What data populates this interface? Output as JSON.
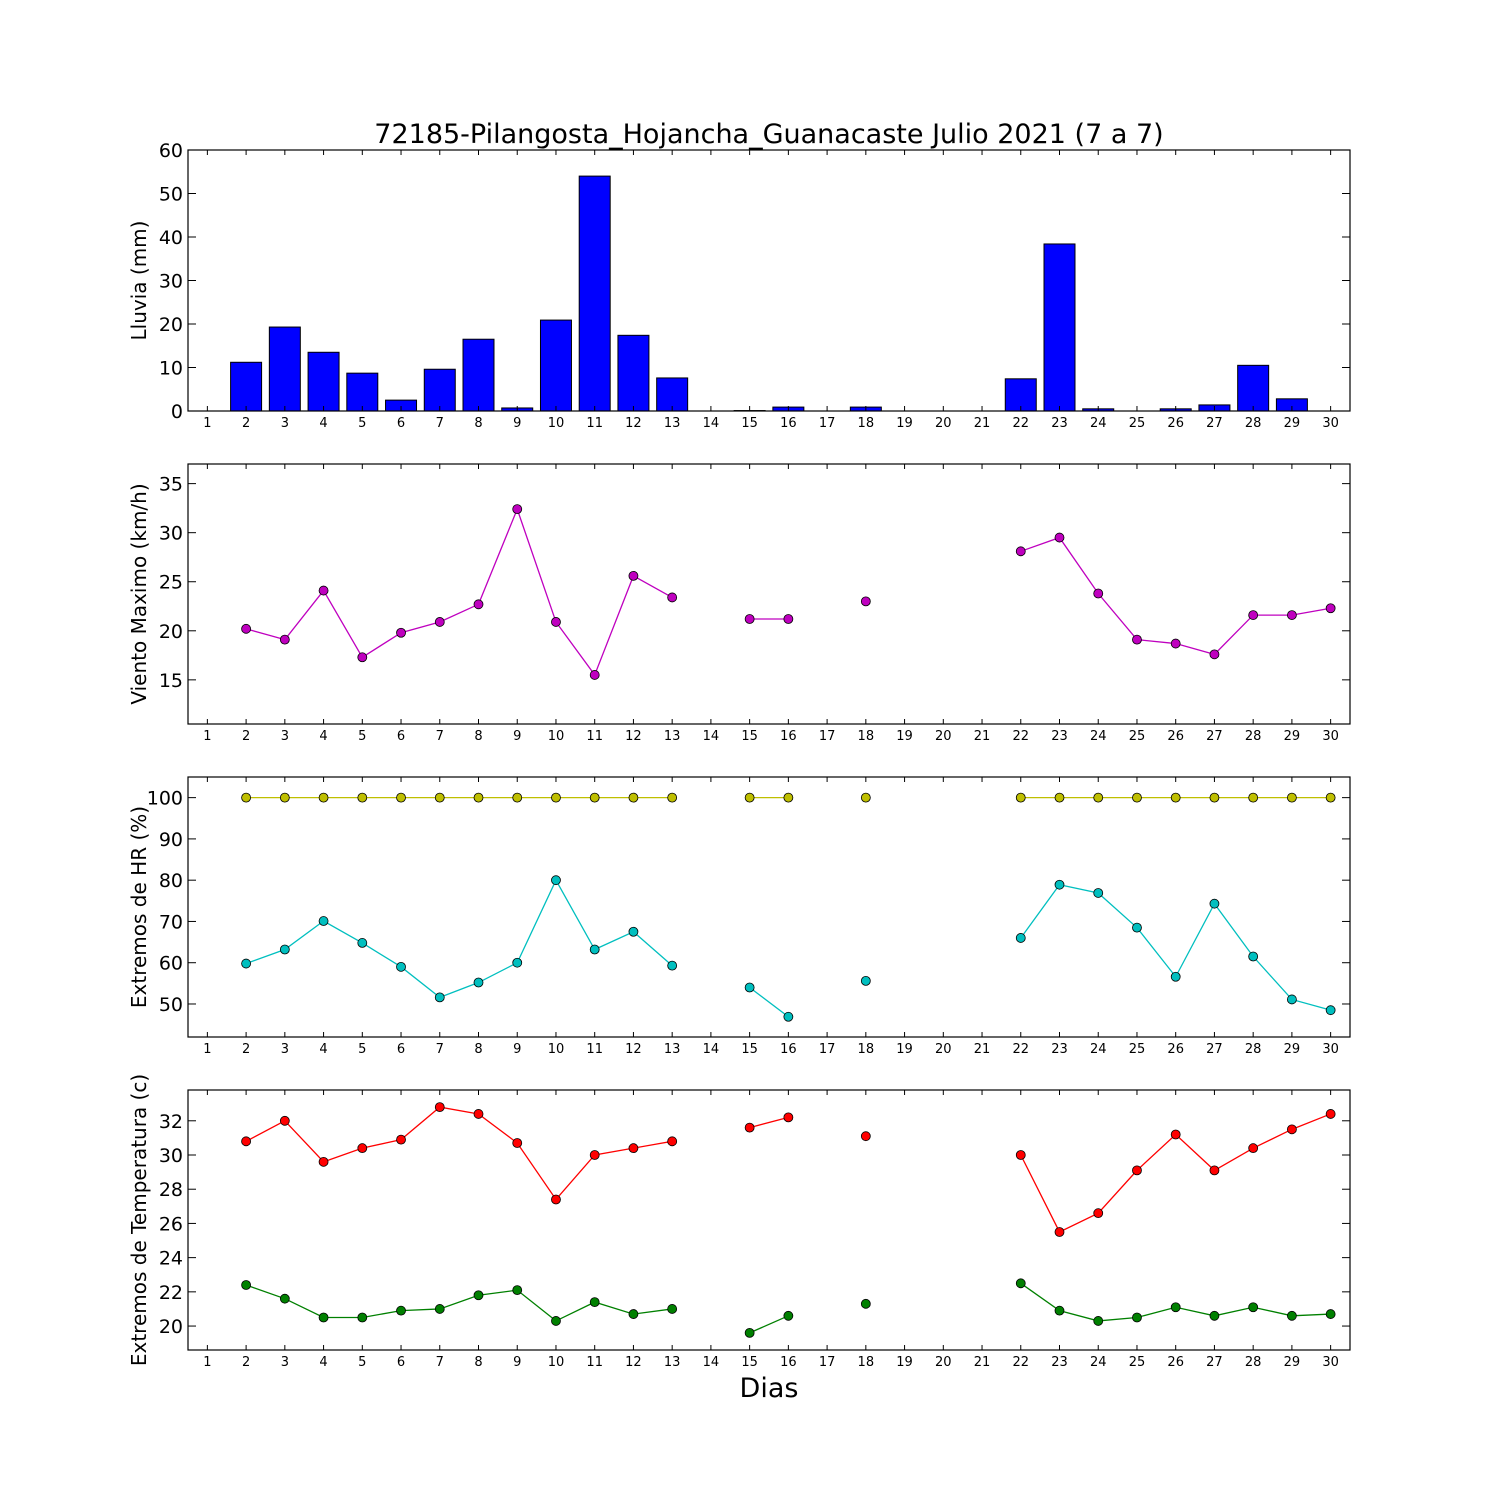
{
  "title": "72185-Pilangosta_Hojancha_Guanacaste Julio 2021  (7 a 7)",
  "chart_data": [
    {
      "type": "bar",
      "ylabel": "Lluvia (mm)",
      "ylim": [
        0,
        60
      ],
      "yticks": [
        0,
        10,
        20,
        30,
        40,
        50,
        60
      ],
      "categories": [
        1,
        2,
        3,
        4,
        5,
        6,
        7,
        8,
        9,
        10,
        11,
        12,
        13,
        14,
        15,
        16,
        17,
        18,
        19,
        20,
        21,
        22,
        23,
        24,
        25,
        26,
        27,
        28,
        29,
        30
      ],
      "series": [
        {
          "color": "#0000ff",
          "values": [
            0,
            11.2,
            19.3,
            13.5,
            8.7,
            2.5,
            9.6,
            16.5,
            0.7,
            20.9,
            54.0,
            17.4,
            7.6,
            0,
            0.1,
            0.9,
            0,
            0.9,
            0,
            0,
            0,
            7.4,
            38.4,
            0.5,
            0,
            0.5,
            1.4,
            10.5,
            2.8,
            0
          ]
        }
      ]
    },
    {
      "type": "line",
      "ylabel": "Viento Maximo (km/h)",
      "ylim": [
        10.5,
        37
      ],
      "yticks": [
        15,
        20,
        25,
        30,
        35
      ],
      "categories": [
        1,
        2,
        3,
        4,
        5,
        6,
        7,
        8,
        9,
        10,
        11,
        12,
        13,
        14,
        15,
        16,
        17,
        18,
        19,
        20,
        21,
        22,
        23,
        24,
        25,
        26,
        27,
        28,
        29,
        30
      ],
      "series": [
        {
          "color": "#bf00bf",
          "values": [
            null,
            20.2,
            19.1,
            24.1,
            17.3,
            19.8,
            20.9,
            22.7,
            32.4,
            20.9,
            15.5,
            25.6,
            23.4,
            null,
            21.2,
            21.2,
            null,
            23.0,
            null,
            null,
            null,
            28.1,
            29.5,
            23.8,
            19.1,
            18.7,
            17.6,
            21.6,
            21.6,
            22.3
          ]
        }
      ]
    },
    {
      "type": "line",
      "ylabel": "Extremos de HR (%)",
      "ylim": [
        42,
        105
      ],
      "yticks": [
        50,
        60,
        70,
        80,
        90,
        100
      ],
      "categories": [
        1,
        2,
        3,
        4,
        5,
        6,
        7,
        8,
        9,
        10,
        11,
        12,
        13,
        14,
        15,
        16,
        17,
        18,
        19,
        20,
        21,
        22,
        23,
        24,
        25,
        26,
        27,
        28,
        29,
        30
      ],
      "series": [
        {
          "color": "#bfbf00",
          "values": [
            null,
            100,
            100,
            100,
            100,
            100,
            100,
            100,
            100,
            100,
            100,
            100,
            100,
            null,
            100,
            100,
            null,
            100,
            null,
            null,
            null,
            100,
            100,
            100,
            100,
            100,
            100,
            100,
            100,
            100
          ]
        },
        {
          "color": "#00bfbf",
          "values": [
            null,
            59.8,
            63.2,
            70.1,
            64.8,
            59.0,
            51.6,
            55.2,
            60.0,
            80.0,
            63.2,
            67.5,
            59.3,
            null,
            54.0,
            46.9,
            null,
            55.6,
            null,
            null,
            null,
            66.0,
            78.9,
            76.9,
            68.5,
            56.6,
            74.3,
            61.5,
            51.1,
            48.5
          ]
        }
      ]
    },
    {
      "type": "line",
      "ylabel": "Extremos de Temperatura (c)",
      "xlabel": "Dias",
      "ylim": [
        18.6,
        33.8
      ],
      "yticks": [
        20,
        22,
        24,
        26,
        28,
        30,
        32
      ],
      "categories": [
        1,
        2,
        3,
        4,
        5,
        6,
        7,
        8,
        9,
        10,
        11,
        12,
        13,
        14,
        15,
        16,
        17,
        18,
        19,
        20,
        21,
        22,
        23,
        24,
        25,
        26,
        27,
        28,
        29,
        30
      ],
      "series": [
        {
          "color": "#ff0000",
          "values": [
            null,
            30.8,
            32.0,
            29.6,
            30.4,
            30.9,
            32.8,
            32.4,
            30.7,
            27.4,
            30.0,
            30.4,
            30.8,
            null,
            31.6,
            32.2,
            null,
            31.1,
            null,
            null,
            null,
            30.0,
            25.5,
            26.6,
            29.1,
            31.2,
            29.1,
            30.4,
            31.5,
            32.4
          ]
        },
        {
          "color": "#008000",
          "values": [
            null,
            22.4,
            21.6,
            20.5,
            20.5,
            20.9,
            21.0,
            21.8,
            22.1,
            20.3,
            21.4,
            20.7,
            21.0,
            null,
            19.6,
            20.6,
            null,
            21.3,
            null,
            null,
            null,
            22.5,
            20.9,
            20.3,
            20.5,
            21.1,
            20.6,
            21.1,
            20.6,
            20.7
          ]
        }
      ]
    }
  ]
}
